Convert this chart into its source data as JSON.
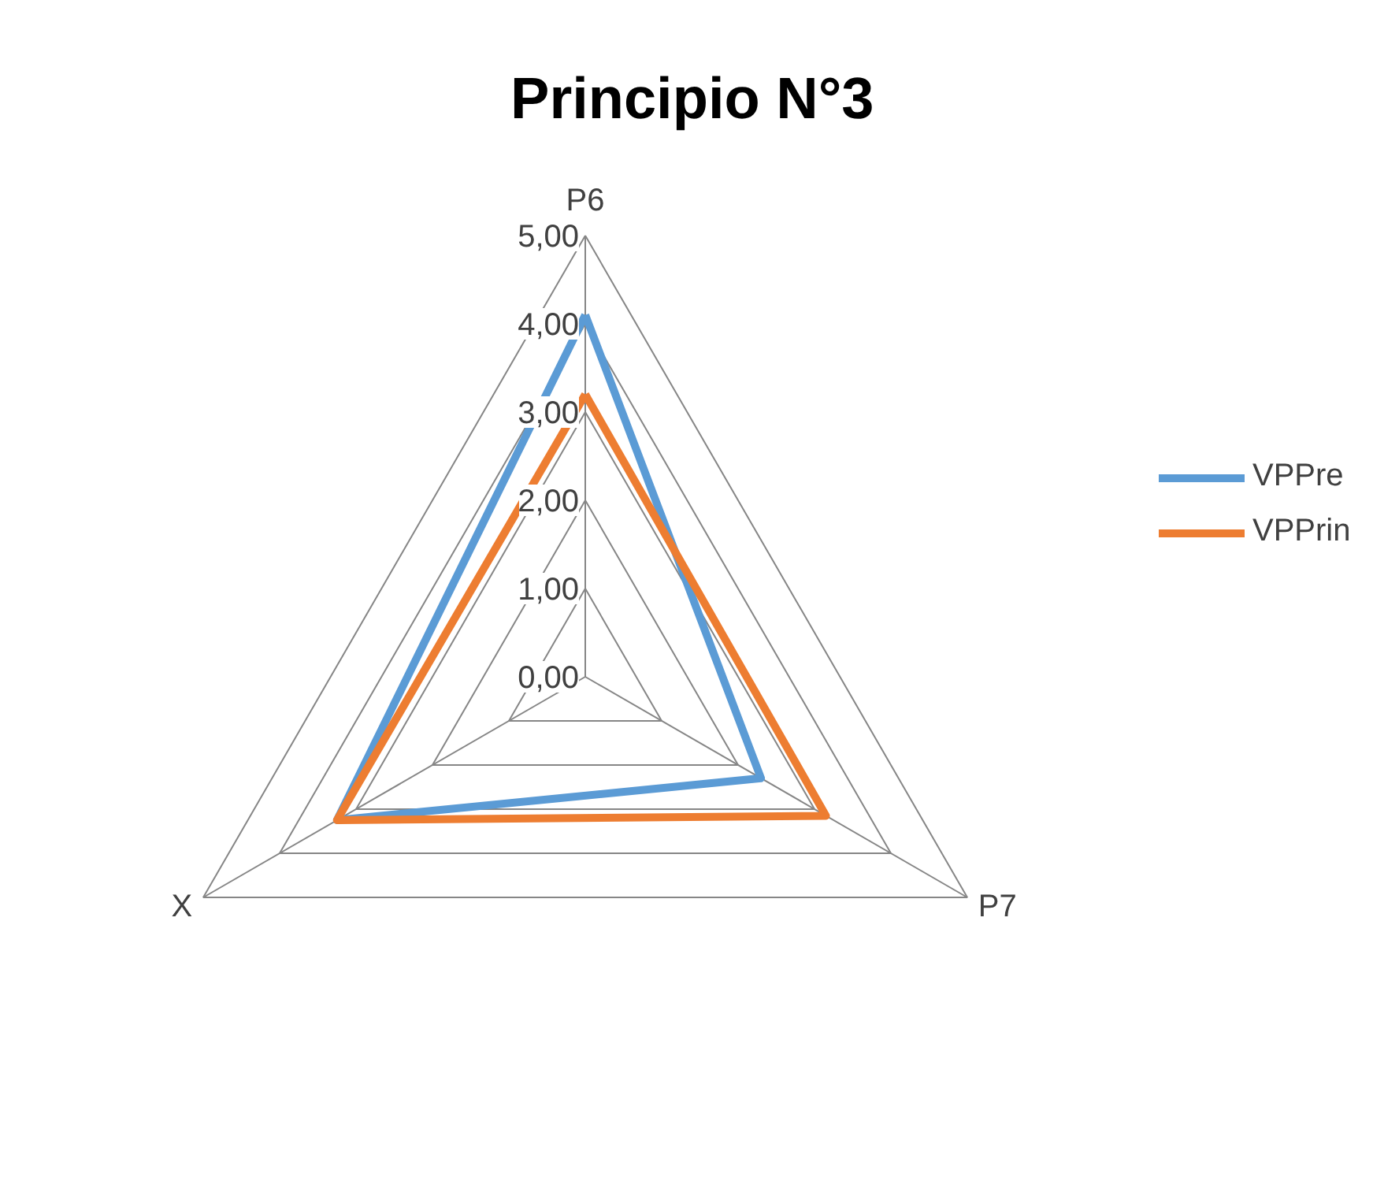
{
  "chart_data": {
    "type": "radar",
    "title": "Principio  N°3",
    "categories": [
      "P6",
      "P7",
      "X"
    ],
    "ylim": [
      0,
      5
    ],
    "yticks": [
      {
        "value": 0,
        "label": "0,00"
      },
      {
        "value": 1,
        "label": "1,00"
      },
      {
        "value": 2,
        "label": "2,00"
      },
      {
        "value": 3,
        "label": "3,00"
      },
      {
        "value": 4,
        "label": "4,00"
      },
      {
        "value": 5,
        "label": "5,00"
      }
    ],
    "grid": true,
    "legend": "right",
    "series": [
      {
        "name": "VPPre",
        "color": "#5b9bd5",
        "values": [
          4.1,
          2.3,
          3.25
        ]
      },
      {
        "name": "VPPrin",
        "color": "#ed7d31",
        "values": [
          3.2,
          3.15,
          3.25
        ]
      }
    ]
  }
}
